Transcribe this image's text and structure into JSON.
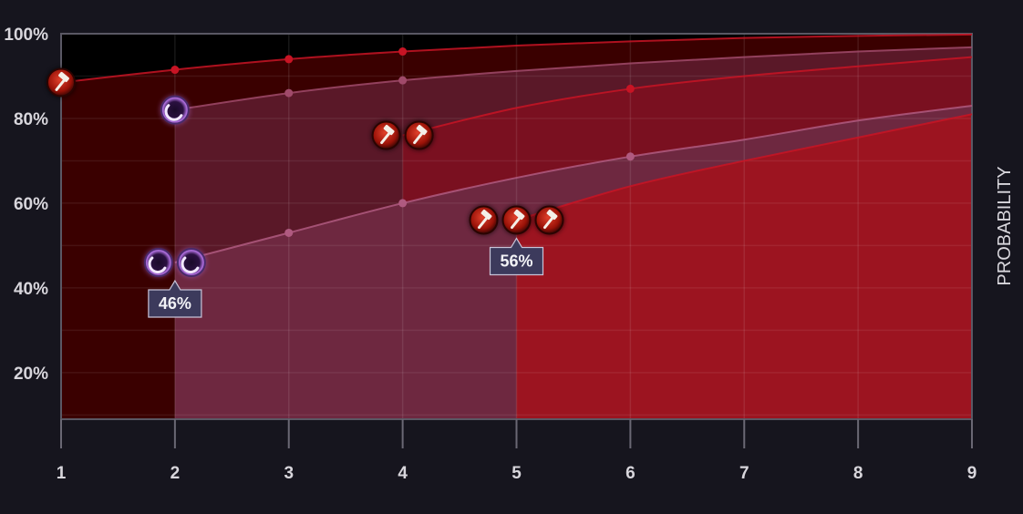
{
  "chart_data": {
    "type": "area",
    "ylabel": "PROBABILITY",
    "xlim": [
      1,
      9
    ],
    "ylim": [
      0.09,
      1.0
    ],
    "x_ticks": [
      "1",
      "2",
      "3",
      "4",
      "5",
      "6",
      "7",
      "8",
      "9"
    ],
    "y_ticks": [
      {
        "value": 1.0,
        "label": "100%"
      },
      {
        "value": 0.8,
        "label": "80%"
      },
      {
        "value": 0.6,
        "label": "60%"
      },
      {
        "value": 0.4,
        "label": "40%"
      },
      {
        "value": 0.2,
        "label": "20%"
      }
    ],
    "grid": true,
    "series": [
      {
        "start": 1,
        "color": "#3a0000",
        "points": [
          [
            1,
            0.885
          ],
          [
            2,
            0.915
          ],
          [
            3,
            0.94
          ],
          [
            4,
            0.958
          ],
          [
            5,
            0.972
          ],
          [
            6,
            0.982
          ],
          [
            7,
            0.99
          ],
          [
            8,
            0.995
          ],
          [
            9,
            0.998
          ]
        ],
        "markers": [
          2,
          3,
          4
        ],
        "marker_color": "#c81424"
      },
      {
        "start": 2,
        "color": "#5a1828",
        "points": [
          [
            2,
            0.82
          ],
          [
            3,
            0.86
          ],
          [
            4,
            0.89
          ],
          [
            5,
            0.912
          ],
          [
            6,
            0.93
          ],
          [
            7,
            0.945
          ],
          [
            8,
            0.958
          ],
          [
            9,
            0.968
          ]
        ],
        "markers": [
          3,
          4
        ],
        "marker_color": "#a04a6a"
      },
      {
        "start": 4,
        "color": "#7a1020",
        "points": [
          [
            4,
            0.76
          ],
          [
            5,
            0.825
          ],
          [
            6,
            0.87
          ],
          [
            7,
            0.9
          ],
          [
            8,
            0.923
          ],
          [
            9,
            0.945
          ]
        ],
        "markers": [
          6
        ],
        "marker_color": "#c81424"
      },
      {
        "start": 2,
        "color": "#6e2840",
        "clip_right": 5,
        "points": [
          [
            2,
            0.46
          ],
          [
            3,
            0.53
          ],
          [
            4,
            0.6
          ],
          [
            5,
            0.66
          ],
          [
            6,
            0.71
          ],
          [
            7,
            0.75
          ],
          [
            8,
            0.795
          ],
          [
            9,
            0.83
          ]
        ],
        "markers": [
          3,
          4,
          6
        ],
        "marker_color": "#b05a80"
      },
      {
        "start": 5,
        "color": "#9c1420",
        "points": [
          [
            5,
            0.56
          ],
          [
            6,
            0.64
          ],
          [
            7,
            0.7
          ],
          [
            8,
            0.755
          ],
          [
            9,
            0.81
          ]
        ],
        "markers": [],
        "marker_color": "#c81424"
      }
    ],
    "icons": [
      {
        "kind": "hammer",
        "x": 1,
        "y": 0.885,
        "count": 1
      },
      {
        "kind": "orb",
        "x": 2,
        "y": 0.82,
        "count": 1
      },
      {
        "kind": "hammer",
        "x": 4,
        "y": 0.76,
        "count": 2
      },
      {
        "kind": "orb",
        "x": 2,
        "y": 0.46,
        "count": 2
      },
      {
        "kind": "hammer",
        "x": 5,
        "y": 0.56,
        "count": 3
      }
    ],
    "annotations": [
      {
        "x": 2,
        "y": 0.46,
        "label": "46%"
      },
      {
        "x": 5,
        "y": 0.56,
        "label": "56%"
      }
    ]
  }
}
